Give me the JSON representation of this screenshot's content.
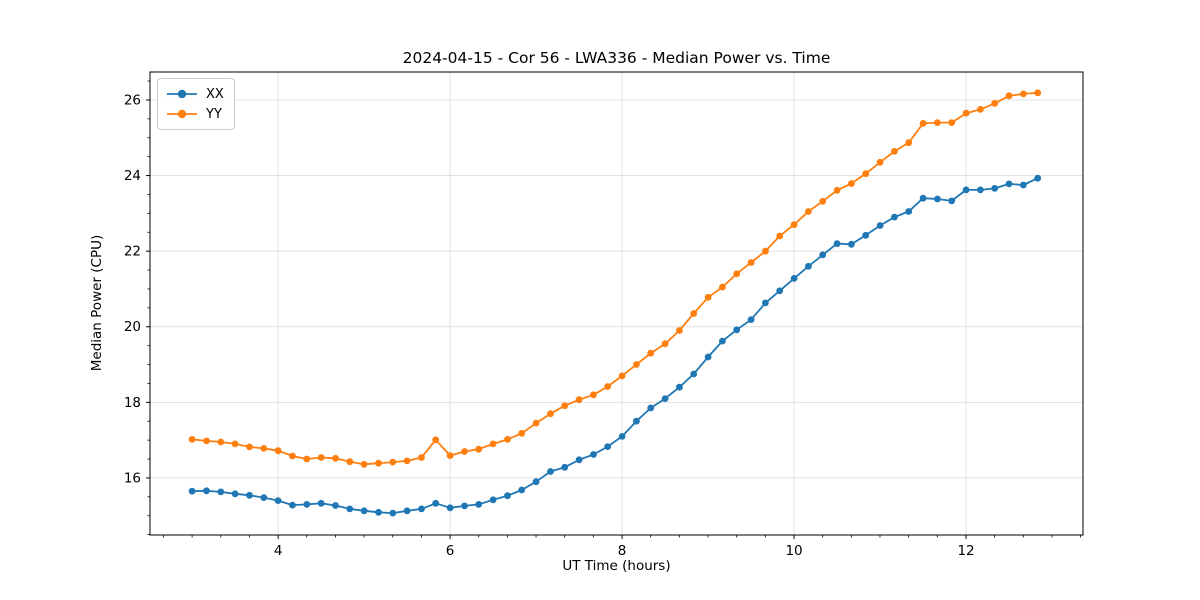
{
  "chart_data": {
    "type": "line",
    "title": "2024-04-15 - Cor 56 - LWA336 - Median Power vs. Time",
    "xlabel": "UT Time (hours)",
    "ylabel": "Median Power (CPU)",
    "xlim": [
      2.51,
      13.36
    ],
    "ylim": [
      14.49,
      26.74
    ],
    "xticks": [
      4,
      6,
      8,
      10,
      12
    ],
    "yticks": [
      16,
      18,
      20,
      22,
      24,
      26
    ],
    "x_minor_step": 0.3333,
    "y_minor_step": 0.5,
    "grid": true,
    "legend_position": "upper left",
    "colors": {
      "grid": "#e0e0e0",
      "axis": "#000000",
      "background": "#ffffff"
    },
    "x": [
      3.0,
      3.167,
      3.333,
      3.5,
      3.667,
      3.833,
      4.0,
      4.167,
      4.333,
      4.5,
      4.667,
      4.833,
      5.0,
      5.167,
      5.333,
      5.5,
      5.667,
      5.833,
      6.0,
      6.167,
      6.333,
      6.5,
      6.667,
      6.833,
      7.0,
      7.167,
      7.333,
      7.5,
      7.667,
      7.833,
      8.0,
      8.167,
      8.333,
      8.5,
      8.667,
      8.833,
      9.0,
      9.167,
      9.333,
      9.5,
      9.667,
      9.833,
      10.0,
      10.167,
      10.333,
      10.5,
      10.667,
      10.833,
      11.0,
      11.167,
      11.333,
      11.5,
      11.667,
      11.833,
      12.0,
      12.167,
      12.333,
      12.5,
      12.667,
      12.833
    ],
    "series": [
      {
        "name": "XX",
        "color": "#1f77b4",
        "values": [
          15.65,
          15.66,
          15.63,
          15.58,
          15.54,
          15.48,
          15.4,
          15.28,
          15.3,
          15.33,
          15.27,
          15.18,
          15.13,
          15.09,
          15.07,
          15.13,
          15.18,
          15.33,
          15.21,
          15.26,
          15.3,
          15.42,
          15.53,
          15.68,
          15.9,
          16.17,
          16.28,
          16.48,
          16.62,
          16.83,
          17.1,
          17.5,
          17.85,
          18.1,
          18.4,
          18.75,
          19.2,
          19.62,
          19.92,
          20.19,
          20.63,
          20.95,
          21.28,
          21.6,
          21.9,
          22.2,
          22.18,
          22.42,
          22.68,
          22.9,
          23.05,
          23.4,
          23.38,
          23.33,
          23.62,
          23.62,
          23.66,
          23.78,
          23.75,
          23.93
        ]
      },
      {
        "name": "YY",
        "color": "#ff7f0e",
        "values": [
          17.02,
          16.98,
          16.95,
          16.9,
          16.82,
          16.78,
          16.72,
          16.58,
          16.5,
          16.54,
          16.52,
          16.43,
          16.36,
          16.39,
          16.42,
          16.45,
          16.54,
          17.01,
          16.59,
          16.7,
          16.76,
          16.9,
          17.02,
          17.18,
          17.45,
          17.7,
          17.91,
          18.07,
          18.2,
          18.42,
          18.7,
          19.0,
          19.3,
          19.55,
          19.9,
          20.35,
          20.78,
          21.05,
          21.4,
          21.7,
          22.0,
          22.4,
          22.7,
          23.05,
          23.32,
          23.61,
          23.79,
          24.05,
          24.35,
          24.64,
          24.87,
          25.38,
          25.4,
          25.4,
          25.65,
          25.75,
          25.91,
          26.11,
          26.16,
          26.19
        ]
      }
    ]
  }
}
